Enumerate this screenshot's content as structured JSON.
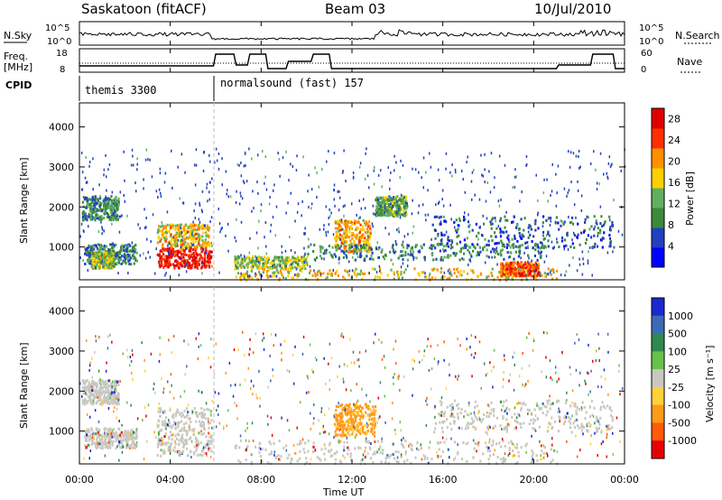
{
  "header": {
    "station": "Saskatoon (fitACF)",
    "beam": "Beam 03",
    "date": "10/Jul/2010"
  },
  "top_panels": {
    "nsky_label": "N.Sky",
    "nsky_ticks": [
      "10^5",
      "10^0"
    ],
    "nsearch_label": "N.Search",
    "nsearch_ticks": [
      "10^5",
      "10^0"
    ],
    "freq_label": "Freq.",
    "freq_unit": "[MHz]",
    "freq_ticks": [
      "18",
      "8"
    ],
    "nave_label": "Nave",
    "nave_ticks": [
      "60",
      "0"
    ],
    "cpid_label": "CPID",
    "cpid_segments": [
      {
        "text": "themis 3300",
        "start_hour": 0,
        "end_hour": 5.92
      },
      {
        "text": "normalsound (fast) 157",
        "start_hour": 5.92,
        "end_hour": 24
      }
    ]
  },
  "x_axis": {
    "label": "Time UT",
    "ticks": [
      "00:00",
      "04:00",
      "08:00",
      "12:00",
      "16:00",
      "20:00",
      "00:00"
    ],
    "tick_hours": [
      0,
      4,
      8,
      12,
      16,
      20,
      24
    ]
  },
  "chart_data": [
    {
      "type": "heatmap",
      "name": "power",
      "xlabel": "Time UT",
      "ylabel": "Slant Range [km]",
      "xlim_hours": [
        0,
        24
      ],
      "ylim": [
        180,
        4600
      ],
      "yticks": [
        "1000",
        "2000",
        "3000",
        "4000"
      ],
      "ytick_values": [
        1000,
        2000,
        3000,
        4000
      ],
      "colorbar": {
        "label": "Power [dB]",
        "ticks": [
          "4",
          "8",
          "12",
          "16",
          "20",
          "24",
          "28"
        ],
        "tick_values": [
          4,
          8,
          12,
          16,
          20,
          24,
          28
        ],
        "range": [
          0,
          30
        ]
      },
      "regions": [
        {
          "t0": 0.1,
          "t1": 1.7,
          "r0": 1700,
          "r1": 2300,
          "level": 10
        },
        {
          "t0": 0.2,
          "t1": 2.5,
          "r0": 600,
          "r1": 1100,
          "level": 9
        },
        {
          "t0": 0.5,
          "t1": 1.5,
          "r0": 500,
          "r1": 900,
          "level": 14
        },
        {
          "t0": 3.4,
          "t1": 5.7,
          "r0": 1000,
          "r1": 1600,
          "level": 18
        },
        {
          "t0": 3.4,
          "t1": 5.8,
          "r0": 500,
          "r1": 1000,
          "level": 27
        },
        {
          "t0": 6.8,
          "t1": 10.0,
          "r0": 500,
          "r1": 800,
          "level": 14
        },
        {
          "t0": 6.8,
          "t1": 21.0,
          "r0": 200,
          "r1": 500,
          "level": 17
        },
        {
          "t0": 11.2,
          "t1": 12.8,
          "r0": 900,
          "r1": 1700,
          "level": 19
        },
        {
          "t0": 13.0,
          "t1": 14.4,
          "r0": 1800,
          "r1": 2300,
          "level": 12
        },
        {
          "t0": 10.0,
          "t1": 20.5,
          "r0": 700,
          "r1": 1100,
          "level": 9
        },
        {
          "t0": 15.5,
          "t1": 23.5,
          "r0": 1000,
          "r1": 1800,
          "level": 7
        },
        {
          "t0": 18.5,
          "t1": 20.2,
          "r0": 300,
          "r1": 650,
          "level": 23
        }
      ]
    },
    {
      "type": "heatmap",
      "name": "velocity",
      "xlabel": "Time UT",
      "ylabel": "Slant Range [km]",
      "xlim_hours": [
        0,
        24
      ],
      "ylim": [
        180,
        4600
      ],
      "yticks": [
        "1000",
        "2000",
        "3000",
        "4000"
      ],
      "ytick_values": [
        1000,
        2000,
        3000,
        4000
      ],
      "colorbar": {
        "label": "Velocity [m s⁻¹]",
        "ticks": [
          "1000",
          "500",
          "100",
          "25",
          "-25",
          "-100",
          "-500",
          "-1000"
        ]
      },
      "regions": [
        {
          "t0": 0.1,
          "t1": 1.7,
          "r0": 1700,
          "r1": 2300,
          "class": "ground"
        },
        {
          "t0": 0.2,
          "t1": 2.5,
          "r0": 600,
          "r1": 1100,
          "class": "ground"
        },
        {
          "t0": 3.4,
          "t1": 5.8,
          "r0": 400,
          "r1": 1600,
          "class": "ground"
        },
        {
          "t0": 6.8,
          "t1": 21.0,
          "r0": 200,
          "r1": 800,
          "class": "ground"
        },
        {
          "t0": 11.2,
          "t1": 13.0,
          "r0": 900,
          "r1": 1700,
          "class": "neg100"
        },
        {
          "t0": 15.5,
          "t1": 23.5,
          "r0": 1000,
          "r1": 1800,
          "class": "ground"
        }
      ]
    }
  ],
  "colors": {
    "power_scale": [
      "#0000ff",
      "#2340c0",
      "#3c8a3c",
      "#60b060",
      "#ffd000",
      "#ff9000",
      "#ff3000",
      "#e00000"
    ],
    "velocity_scale": [
      "#1a2acc",
      "#3c6ab8",
      "#2e8a4e",
      "#66c24a",
      "#c8c8c0",
      "#ffd23a",
      "#ff9a1a",
      "#ff5a0a",
      "#e80000"
    ],
    "ground": "#c8c8c0"
  }
}
